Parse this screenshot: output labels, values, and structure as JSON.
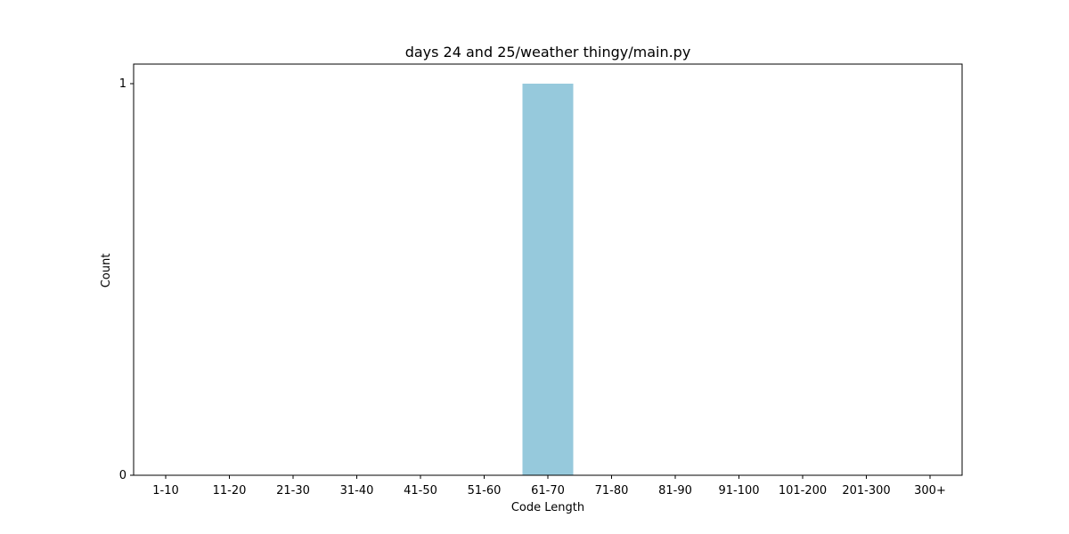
{
  "chart_data": {
    "type": "bar",
    "title": "days 24 and 25/weather thingy/main.py",
    "xlabel": "Code Length",
    "ylabel": "Count",
    "categories": [
      "1-10",
      "11-20",
      "21-30",
      "31-40",
      "41-50",
      "51-60",
      "61-70",
      "71-80",
      "81-90",
      "91-100",
      "101-200",
      "201-300",
      "300+"
    ],
    "values": [
      0,
      0,
      0,
      0,
      0,
      0,
      1,
      0,
      0,
      0,
      0,
      0,
      0
    ],
    "yticks": [
      0,
      1
    ],
    "ylim": [
      0,
      1.05
    ],
    "grid": false,
    "bar_color": "#96c9dc"
  }
}
